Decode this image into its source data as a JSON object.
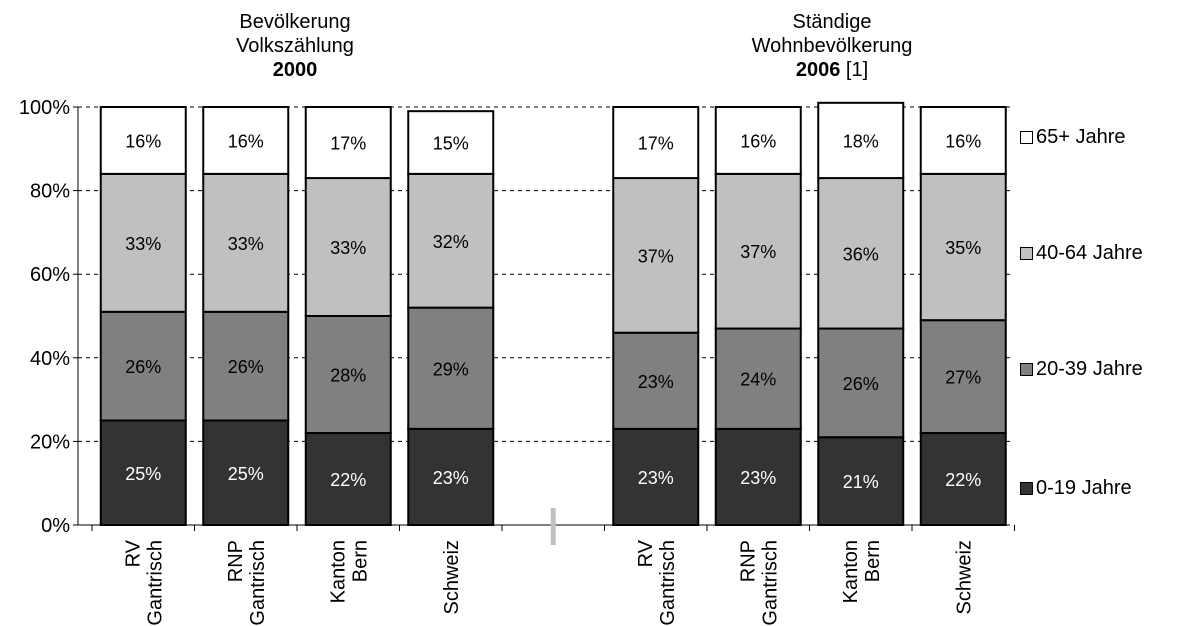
{
  "chart_data": {
    "type": "bar",
    "stacked": true,
    "percent": true,
    "ylim": [
      0,
      100
    ],
    "yticks": [
      "0%",
      "20%",
      "40%",
      "60%",
      "80%",
      "100%"
    ],
    "grid": "dashed horizontal",
    "legend_position": "right",
    "groups": [
      {
        "title_lines": [
          "Bevölkerung",
          "Volkszählung"
        ],
        "title_year": "2000",
        "title_note": "",
        "categories": [
          [
            "RV",
            "Gantrisch"
          ],
          [
            "RNP",
            "Gantrisch"
          ],
          [
            "Kanton",
            "Bern"
          ],
          [
            "Schweiz"
          ]
        ],
        "series": [
          {
            "name": "0-19 Jahre",
            "values": [
              25,
              25,
              22,
              23
            ],
            "labels": [
              "25%",
              "25%",
              "22%",
              "23%"
            ]
          },
          {
            "name": "20-39 Jahre",
            "values": [
              26,
              26,
              28,
              29
            ],
            "labels": [
              "26%",
              "26%",
              "28%",
              "29%"
            ]
          },
          {
            "name": "40-64 Jahre",
            "values": [
              33,
              33,
              33,
              32
            ],
            "labels": [
              "33%",
              "33%",
              "33%",
              "32%"
            ]
          },
          {
            "name": "65+ Jahre",
            "values": [
              16,
              16,
              17,
              15
            ],
            "labels": [
              "16%",
              "16%",
              "17%",
              "15%"
            ]
          }
        ]
      },
      {
        "title_lines": [
          "Ständige",
          "Wohnbevölkerung"
        ],
        "title_year": "2006",
        "title_note": " [1]",
        "categories": [
          [
            "RV",
            "Gantrisch"
          ],
          [
            "RNP",
            "Gantrisch"
          ],
          [
            "Kanton",
            "Bern"
          ],
          [
            "Schweiz"
          ]
        ],
        "series": [
          {
            "name": "0-19 Jahre",
            "values": [
              23,
              23,
              21,
              22
            ],
            "labels": [
              "23%",
              "23%",
              "21%",
              "22%"
            ]
          },
          {
            "name": "20-39 Jahre",
            "values": [
              23,
              24,
              26,
              27
            ],
            "labels": [
              "23%",
              "24%",
              "26%",
              "27%"
            ]
          },
          {
            "name": "40-64 Jahre",
            "values": [
              37,
              37,
              36,
              35
            ],
            "labels": [
              "37%",
              "37%",
              "36%",
              "35%"
            ]
          },
          {
            "name": "65+ Jahre",
            "values": [
              17,
              16,
              18,
              16
            ],
            "labels": [
              "17%",
              "16%",
              "18%",
              "16%"
            ]
          }
        ]
      }
    ],
    "legend": [
      "65+ Jahre",
      "40-64 Jahre",
      "20-39 Jahre",
      "0-19 Jahre"
    ],
    "colors": {
      "0-19 Jahre": "#333333",
      "20-39 Jahre": "#808080",
      "40-64 Jahre": "#c0c0c0",
      "65+ Jahre": "#ffffff"
    },
    "label_colors": {
      "0-19 Jahre": "#ffffff",
      "20-39 Jahre": "#000000",
      "40-64 Jahre": "#000000",
      "65+ Jahre": "#000000"
    }
  }
}
